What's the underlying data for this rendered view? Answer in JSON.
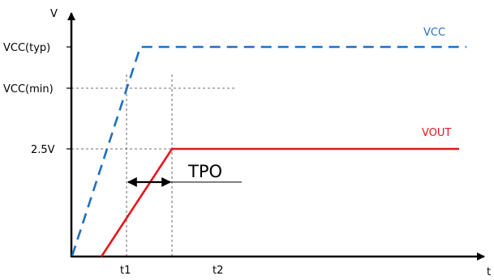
{
  "axes": {
    "y_label": "V",
    "x_label": "t"
  },
  "y_levels": {
    "vcc_typ": "VCC(typ)",
    "vcc_min": "VCC(min)",
    "v_2_5": "2.5V"
  },
  "x_marks": {
    "t1": "t1",
    "t2": "t2"
  },
  "signals": {
    "vcc": {
      "label": "VCC",
      "color": "#1f6fc0",
      "style": "dashed"
    },
    "vout": {
      "label": "VOUT",
      "color": "#e8141b",
      "style": "solid"
    }
  },
  "interval": {
    "label": "TPO"
  }
}
